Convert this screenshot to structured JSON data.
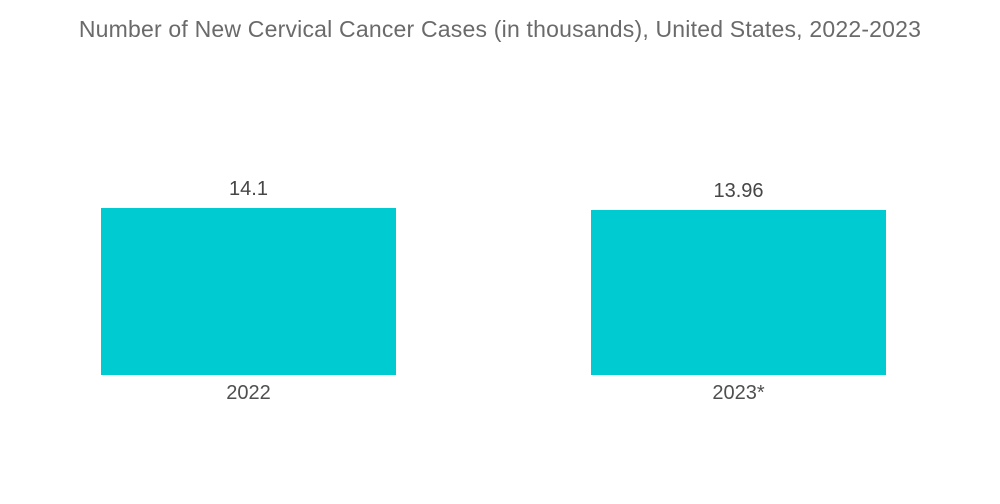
{
  "title": "Number of New Cervical Cancer Cases (in thousands), United States, 2022-2023",
  "colors": {
    "background": "#FFFFFF",
    "bar": "#00CBD1",
    "title_text": "#6A6A6A",
    "value_text": "#464646",
    "category_text": "#4F4F4F"
  },
  "chart_data": {
    "type": "bar",
    "title": "Number of New Cervical Cancer Cases (in thousands), United States, 2022-2023",
    "categories": [
      "2022",
      "2023*"
    ],
    "values": [
      14.1,
      13.96
    ],
    "value_labels": [
      "14.1",
      "13.96"
    ],
    "xlabel": "",
    "ylabel": "",
    "ylim": [
      0,
      14.1
    ],
    "grid": false,
    "legend": false,
    "bar_color": "#00CBD1"
  }
}
